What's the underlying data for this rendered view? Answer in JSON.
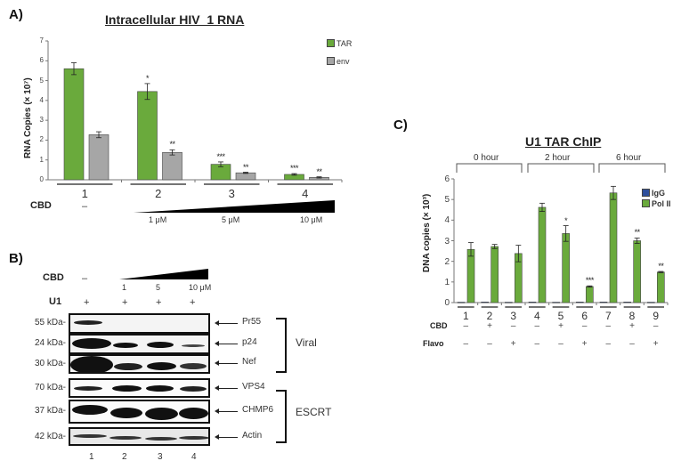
{
  "panels": {
    "a": {
      "label": "A)"
    },
    "b": {
      "label": "B)"
    },
    "c": {
      "label": "C)"
    }
  },
  "chart_data": [
    {
      "type": "bar",
      "panel": "A",
      "title": "Intracellular HIV_1 RNA",
      "xlabel": "",
      "ylabel": "RNA Copies (× 10⁷)",
      "ylim": [
        0,
        7
      ],
      "yticks": [
        "0",
        "1",
        "2",
        "3",
        "4",
        "5",
        "6",
        "7"
      ],
      "categories": [
        "1",
        "2",
        "3",
        "4"
      ],
      "legend_position": "top-right",
      "series": [
        {
          "name": "TAR",
          "color": "#6aaa3c",
          "values": [
            5.6,
            4.45,
            0.78,
            0.27
          ],
          "errors": [
            0.3,
            0.4,
            0.12,
            0.04
          ],
          "significance": [
            "",
            "*",
            "***",
            "***"
          ]
        },
        {
          "name": "env",
          "color": "#a6a6a6",
          "values": [
            2.27,
            1.38,
            0.35,
            0.12
          ],
          "errors": [
            0.15,
            0.13,
            0.03,
            0.03
          ],
          "significance": [
            "",
            "**",
            "**",
            "**"
          ]
        }
      ],
      "treatment_row": {
        "label": "CBD",
        "none": "–",
        "doses": [
          "1 μM",
          "5 μM",
          "10 μM"
        ]
      }
    },
    {
      "type": "bar",
      "panel": "C",
      "title": "U1 TAR ChIP",
      "xlabel": "",
      "ylabel": "DNA copies (× 10³)",
      "ylim": [
        0,
        6
      ],
      "yticks": [
        "0",
        "1",
        "2",
        "3",
        "4",
        "5",
        "6"
      ],
      "categories": [
        "1",
        "2",
        "3",
        "4",
        "5",
        "6",
        "7",
        "8",
        "9"
      ],
      "groups": [
        {
          "label": "0 hour",
          "lanes": [
            1,
            2,
            3
          ]
        },
        {
          "label": "2 hour",
          "lanes": [
            4,
            5,
            6
          ]
        },
        {
          "label": "6 hour",
          "lanes": [
            7,
            8,
            9
          ]
        }
      ],
      "legend_position": "top-right",
      "series": [
        {
          "name": "IgG",
          "color": "#2e4f9c",
          "values": [
            0.02,
            0.03,
            0.02,
            0.03,
            0.02,
            0.03,
            0.03,
            0.03,
            0.02
          ],
          "errors": [
            0,
            0,
            0,
            0,
            0,
            0,
            0,
            0,
            0
          ],
          "significance": [
            "",
            "",
            "",
            "",
            "",
            "",
            "",
            "",
            ""
          ]
        },
        {
          "name": "Pol II",
          "color": "#6aaa3c",
          "values": [
            2.58,
            2.72,
            2.38,
            4.62,
            3.35,
            0.78,
            5.32,
            3.0,
            1.48
          ],
          "errors": [
            0.33,
            0.1,
            0.4,
            0.2,
            0.38,
            0.03,
            0.32,
            0.13,
            0.03
          ],
          "significance": [
            "",
            "",
            "",
            "",
            "*",
            "***",
            "",
            "**",
            "**"
          ]
        }
      ],
      "treatment_rows": [
        {
          "label": "CBD",
          "values": [
            "–",
            "+",
            "–",
            "–",
            "+",
            "–",
            "–",
            "+",
            "–"
          ]
        },
        {
          "label": "Flavo",
          "values": [
            "–",
            "–",
            "+",
            "–",
            "–",
            "+",
            "–",
            "–",
            "+"
          ]
        }
      ]
    }
  ],
  "western": {
    "cbd_label": "CBD",
    "cbd_none": "–",
    "cbd_doses": [
      "1",
      "5",
      "10 μM"
    ],
    "u1_label": "U1",
    "u1_values": [
      "+",
      "+",
      "+",
      "+"
    ],
    "lanes": [
      "1",
      "2",
      "3",
      "4"
    ],
    "blots": [
      {
        "kda": "55 kDa-",
        "protein": "Pr55"
      },
      {
        "kda": "24 kDa-",
        "protein": "p24"
      },
      {
        "kda": "30 kDa-",
        "protein": "Nef"
      },
      {
        "kda": "70 kDa-",
        "protein": "VPS4"
      },
      {
        "kda": "37 kDa-",
        "protein": "CHMP6"
      },
      {
        "kda": "42 kDa-",
        "protein": "Actin"
      }
    ],
    "groups": [
      {
        "label": "Viral"
      },
      {
        "label": "ESCRT"
      }
    ]
  }
}
